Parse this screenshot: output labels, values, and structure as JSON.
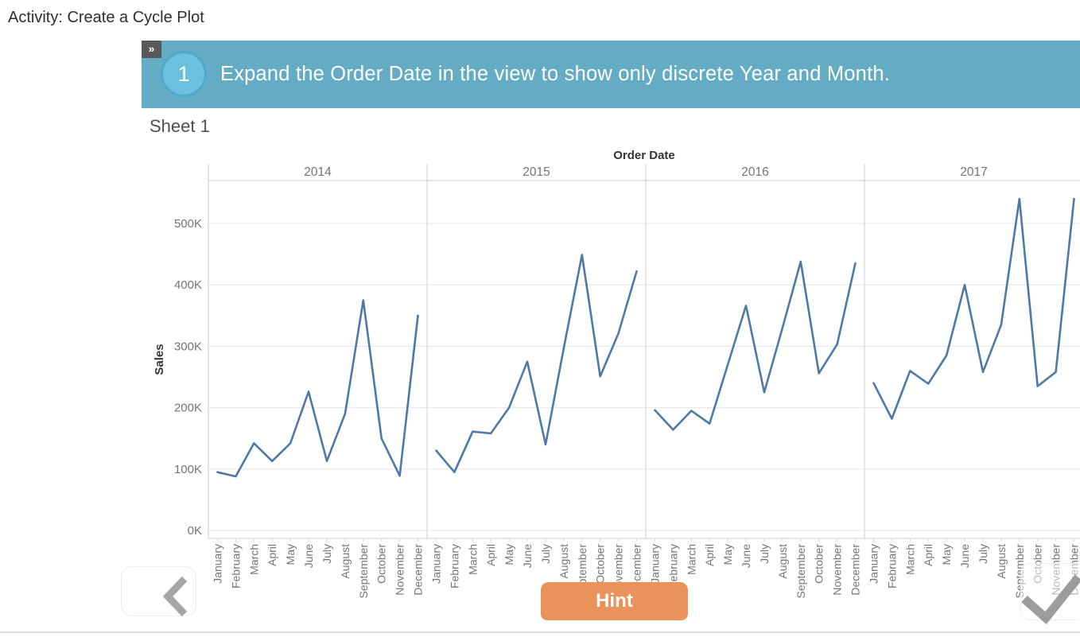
{
  "page": {
    "title": "Activity: Create a Cycle Plot"
  },
  "banner": {
    "collapse_icon": "»",
    "step_number": "1",
    "instruction": "Expand the Order Date in the view to show only discrete Year and Month.",
    "bg_color": "#64abc4",
    "circle_fill": "#6cc0dd",
    "circle_border": "#49aacd"
  },
  "sheet": {
    "title": "Sheet 1"
  },
  "chart_data": {
    "type": "line",
    "title": "Order Date",
    "ylabel": "Sales",
    "y_ticks": [
      "0K",
      "100K",
      "200K",
      "300K",
      "400K",
      "500K"
    ],
    "y_tick_values": [
      0,
      100,
      200,
      300,
      400,
      500
    ],
    "ylim": [
      0,
      570
    ],
    "value_suffix": "K",
    "grid": "horizontal",
    "panels": [
      "2014",
      "2015",
      "2016",
      "2017"
    ],
    "categories": [
      "January",
      "February",
      "March",
      "April",
      "May",
      "June",
      "July",
      "August",
      "September",
      "October",
      "November",
      "December"
    ],
    "series": [
      {
        "name": "2014",
        "values": [
          95,
          88,
          142,
          113,
          142,
          226,
          113,
          190,
          375,
          150,
          89,
          350
        ]
      },
      {
        "name": "2015",
        "values": [
          130,
          95,
          161,
          158,
          200,
          275,
          140,
          297,
          449,
          251,
          321,
          422
        ]
      },
      {
        "name": "2016",
        "values": [
          196,
          164,
          195,
          174,
          270,
          366,
          225,
          330,
          438,
          256,
          303,
          435
        ]
      },
      {
        "name": "2017",
        "values": [
          240,
          182,
          260,
          239,
          285,
          400,
          258,
          335,
          540,
          235,
          258,
          540
        ]
      }
    ],
    "line_color": "#4e79a7",
    "axis_text_color": "#757575",
    "header_text_color": "#333333",
    "gridline_color": "#e9e9e9",
    "border_color": "#d6d6d6"
  },
  "footer": {
    "prev_icon": "chevron-left",
    "hint_label": "Hint",
    "hint_color": "#e9935a",
    "next_icon": "checkmark"
  }
}
